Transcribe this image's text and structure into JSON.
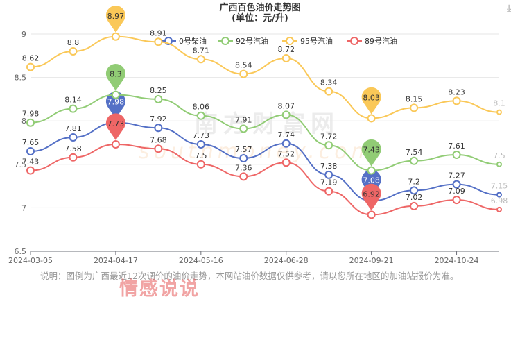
{
  "title_line1": "广西百色油价走势图",
  "title_line2": "(单位：元/升)",
  "download_icon": "download-icon",
  "note": "说明：图例为广西最近12次调价的油价走势，本网站油价数据仅供参考，请以您所在地区的加油站报价为准。",
  "watermarks": {
    "site": "南方财富网",
    "site_url": "southmoney.com",
    "overlay": "情感说说"
  },
  "chart_data": {
    "type": "line",
    "title": "广西百色油价走势图 (单位：元/升)",
    "smooth": true,
    "grid": true,
    "legend_position": "top",
    "x": [
      "2024-03-05",
      "",
      "2024-04-17",
      "",
      "2024-05-16",
      "",
      "2024-06-28",
      "",
      "2024-09-21",
      "",
      "2024-10-24",
      ""
    ],
    "x_tick_labels": [
      "2024-03-05",
      "2024-04-17",
      "2024-05-16",
      "2024-06-28",
      "2024-09-21",
      "2024-10-24"
    ],
    "ylim": [
      6.5,
      9
    ],
    "y_ticks": [
      "6.5",
      "7",
      "7.5",
      "8",
      "8.5",
      "9"
    ],
    "series": [
      {
        "name": "0号柴油",
        "color": "#5470c6",
        "values": [
          7.65,
          7.81,
          7.98,
          7.92,
          7.73,
          7.57,
          7.74,
          7.38,
          7.08,
          7.2,
          7.27,
          7.15
        ]
      },
      {
        "name": "92号汽油",
        "color": "#91cc75",
        "values": [
          7.98,
          8.14,
          8.3,
          8.25,
          8.06,
          7.91,
          8.07,
          7.72,
          7.43,
          7.54,
          7.61,
          7.5
        ]
      },
      {
        "name": "95号汽油",
        "color": "#fac858",
        "values": [
          8.62,
          8.8,
          8.97,
          8.91,
          8.71,
          8.54,
          8.72,
          8.34,
          8.03,
          8.15,
          8.23,
          8.1
        ]
      },
      {
        "name": "89号汽油",
        "color": "#ee6666",
        "values": [
          7.43,
          7.58,
          7.73,
          7.68,
          7.5,
          7.36,
          7.52,
          7.19,
          6.92,
          7.02,
          7.09,
          6.98
        ]
      }
    ],
    "markers": [
      "max",
      "min"
    ]
  }
}
